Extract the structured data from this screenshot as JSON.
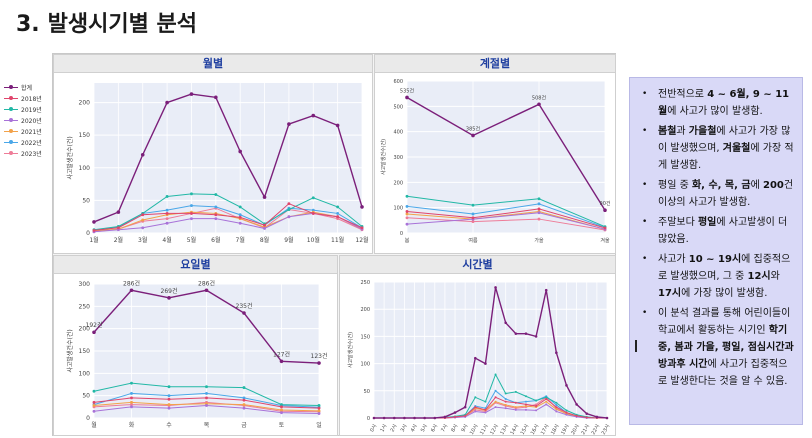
{
  "title": {
    "number": "3.",
    "text": "발생시기별 분석"
  },
  "legend": [
    {
      "name": "합계",
      "color": "#7b1f7a"
    },
    {
      "name": "2018년",
      "color": "#e0456c"
    },
    {
      "name": "2019년",
      "color": "#22b8a6"
    },
    {
      "name": "2020년",
      "color": "#a872d8"
    },
    {
      "name": "2021년",
      "color": "#f2a24a"
    },
    {
      "name": "2022년",
      "color": "#4aa7e8"
    },
    {
      "name": "2023년",
      "color": "#ee7c98"
    }
  ],
  "chart_data": [
    {
      "type": "line",
      "title": "월별",
      "ylabel": "사고발생건수(건)",
      "ylim": [
        0,
        230
      ],
      "yticks": [
        0,
        50,
        100,
        150,
        200
      ],
      "categories": [
        "1월",
        "2월",
        "3월",
        "4월",
        "5월",
        "6월",
        "7월",
        "8월",
        "9월",
        "10월",
        "11월",
        "12월"
      ],
      "series": [
        {
          "name": "합계",
          "values": [
            17,
            32,
            120,
            200,
            213,
            208,
            125,
            55,
            167,
            180,
            165,
            40
          ]
        },
        {
          "name": "2018년",
          "values": [
            4,
            8,
            28,
            30,
            30,
            28,
            24,
            12,
            45,
            30,
            25,
            8
          ]
        },
        {
          "name": "2019년",
          "values": [
            5,
            10,
            30,
            56,
            60,
            59,
            40,
            14,
            36,
            54,
            40,
            10
          ]
        },
        {
          "name": "2020년",
          "values": [
            2,
            5,
            8,
            15,
            22,
            22,
            15,
            7,
            25,
            30,
            25,
            6
          ]
        },
        {
          "name": "2021년",
          "values": [
            3,
            6,
            20,
            28,
            32,
            30,
            22,
            9,
            25,
            32,
            25,
            6
          ]
        },
        {
          "name": "2022년",
          "values": [
            3,
            9,
            30,
            35,
            42,
            40,
            28,
            12,
            38,
            35,
            30,
            8
          ]
        },
        {
          "name": "2023년",
          "values": [
            2,
            6,
            18,
            22,
            30,
            38,
            22,
            8,
            36,
            30,
            22,
            5
          ]
        }
      ]
    },
    {
      "type": "line",
      "title": "계절별",
      "ylabel": "사고발생건수(건)",
      "ylim": [
        0,
        600
      ],
      "yticks": [
        0,
        100,
        200,
        300,
        400,
        500,
        600
      ],
      "categories": [
        "봄",
        "여름",
        "가을",
        "겨울"
      ],
      "data_labels": [
        "535건",
        "385건",
        "508건",
        "90건"
      ],
      "series": [
        {
          "name": "합계",
          "values": [
            535,
            385,
            508,
            90
          ]
        },
        {
          "name": "2018년",
          "values": [
            85,
            60,
            95,
            20
          ]
        },
        {
          "name": "2019년",
          "values": [
            145,
            110,
            135,
            25
          ]
        },
        {
          "name": "2020년",
          "values": [
            35,
            55,
            80,
            15
          ]
        },
        {
          "name": "2021년",
          "values": [
            75,
            55,
            85,
            15
          ]
        },
        {
          "name": "2022년",
          "values": [
            105,
            75,
            115,
            22
          ]
        },
        {
          "name": "2023년",
          "values": [
            60,
            45,
            55,
            12
          ]
        }
      ]
    },
    {
      "type": "line",
      "title": "요일별",
      "ylabel": "사고발생건수(건)",
      "ylim": [
        0,
        300
      ],
      "yticks": [
        0,
        50,
        100,
        150,
        200,
        250,
        300
      ],
      "categories": [
        "월",
        "화",
        "수",
        "목",
        "금",
        "토",
        "일"
      ],
      "data_labels": [
        "192건",
        "286건",
        "269건",
        "286건",
        "235건",
        "127건",
        "123건"
      ],
      "series": [
        {
          "name": "합계",
          "values": [
            192,
            286,
            269,
            286,
            235,
            127,
            123
          ]
        },
        {
          "name": "2018년",
          "values": [
            35,
            45,
            42,
            45,
            40,
            25,
            22
          ]
        },
        {
          "name": "2019년",
          "values": [
            60,
            78,
            70,
            70,
            68,
            30,
            28
          ]
        },
        {
          "name": "2020년",
          "values": [
            15,
            25,
            22,
            28,
            22,
            12,
            10
          ]
        },
        {
          "name": "2021년",
          "values": [
            28,
            35,
            30,
            32,
            30,
            18,
            16
          ]
        },
        {
          "name": "2022년",
          "values": [
            30,
            55,
            50,
            55,
            45,
            28,
            24
          ]
        },
        {
          "name": "2023년",
          "values": [
            25,
            30,
            28,
            35,
            28,
            15,
            14
          ]
        }
      ]
    },
    {
      "type": "line",
      "title": "시간별",
      "ylabel": "사고발생건수(건)",
      "ylim": [
        0,
        250
      ],
      "yticks": [
        0,
        50,
        100,
        150,
        200,
        250
      ],
      "categories": [
        "0시",
        "1시",
        "2시",
        "3시",
        "4시",
        "5시",
        "6시",
        "7시",
        "8시",
        "9시",
        "10시",
        "11시",
        "12시",
        "13시",
        "14시",
        "15시",
        "16시",
        "17시",
        "18시",
        "19시",
        "20시",
        "21시",
        "22시",
        "23시"
      ],
      "series": [
        {
          "name": "합계",
          "values": [
            0,
            0,
            0,
            0,
            0,
            0,
            0,
            2,
            10,
            20,
            110,
            100,
            240,
            175,
            155,
            155,
            150,
            235,
            120,
            60,
            25,
            8,
            2,
            0
          ]
        },
        {
          "name": "2018년",
          "values": [
            0,
            0,
            0,
            0,
            0,
            0,
            0,
            0,
            2,
            4,
            20,
            15,
            38,
            30,
            28,
            25,
            22,
            35,
            20,
            10,
            4,
            1,
            0,
            0
          ]
        },
        {
          "name": "2019년",
          "values": [
            0,
            0,
            0,
            0,
            0,
            0,
            0,
            1,
            3,
            6,
            38,
            30,
            80,
            45,
            48,
            40,
            32,
            38,
            28,
            14,
            6,
            2,
            0,
            0
          ]
        },
        {
          "name": "2020년",
          "values": [
            0,
            0,
            0,
            0,
            0,
            0,
            0,
            0,
            1,
            2,
            12,
            10,
            20,
            18,
            15,
            15,
            14,
            25,
            12,
            6,
            2,
            0,
            0,
            0
          ]
        },
        {
          "name": "2021년",
          "values": [
            0,
            0,
            0,
            0,
            0,
            0,
            0,
            0,
            2,
            3,
            18,
            14,
            30,
            24,
            20,
            22,
            20,
            30,
            16,
            8,
            3,
            1,
            0,
            0
          ]
        },
        {
          "name": "2022년",
          "values": [
            0,
            0,
            0,
            0,
            0,
            0,
            0,
            1,
            2,
            4,
            22,
            18,
            50,
            35,
            28,
            30,
            32,
            40,
            24,
            10,
            4,
            1,
            0,
            0
          ]
        },
        {
          "name": "2023년",
          "values": [
            0,
            0,
            0,
            0,
            0,
            0,
            0,
            0,
            1,
            3,
            15,
            12,
            28,
            22,
            18,
            20,
            25,
            38,
            18,
            8,
            3,
            1,
            0,
            0
          ]
        }
      ]
    }
  ],
  "info": {
    "items": [
      [
        {
          "t": "전반적으로 "
        },
        {
          "t": "4 ~ 6월, 9 ~ 11월",
          "b": true
        },
        {
          "t": "에 사고가 많이 발생함."
        }
      ],
      [
        {
          "t": "봄철",
          "b": true
        },
        {
          "t": "과 "
        },
        {
          "t": "가을철",
          "b": true
        },
        {
          "t": "에 사고가 가장 많이 발생했으며, "
        },
        {
          "t": "겨울철",
          "b": true
        },
        {
          "t": "에 가장 적게 발생함."
        }
      ],
      [
        {
          "t": "평일 중 "
        },
        {
          "t": "화, 수, 목, 금",
          "b": true
        },
        {
          "t": "에 "
        },
        {
          "t": "200",
          "b": true
        },
        {
          "t": "건 이상의 사고가 발생함."
        }
      ],
      [
        {
          "t": "주말보다 "
        },
        {
          "t": "평일",
          "b": true
        },
        {
          "t": "에 사고발생이 더 많았음."
        }
      ],
      [
        {
          "t": "사고가 "
        },
        {
          "t": "10 ~ 19시",
          "b": true
        },
        {
          "t": "에 집중적으로 발생했으며, 그 중 "
        },
        {
          "t": "12시",
          "b": true
        },
        {
          "t": "와 "
        },
        {
          "t": "17시",
          "b": true
        },
        {
          "t": "에 가장 많이 발생함."
        }
      ],
      [
        {
          "t": "이 분석 결과를 통해 어린이들이 학교에서 활동하는 시기인 "
        },
        {
          "t": "학기 중, 봄과 가을, 평일, 점심시간과 방과후 시간",
          "b": true
        },
        {
          "t": "에 사고가 집중적으로 발생한다는 것을 알 수 있음."
        }
      ]
    ]
  }
}
